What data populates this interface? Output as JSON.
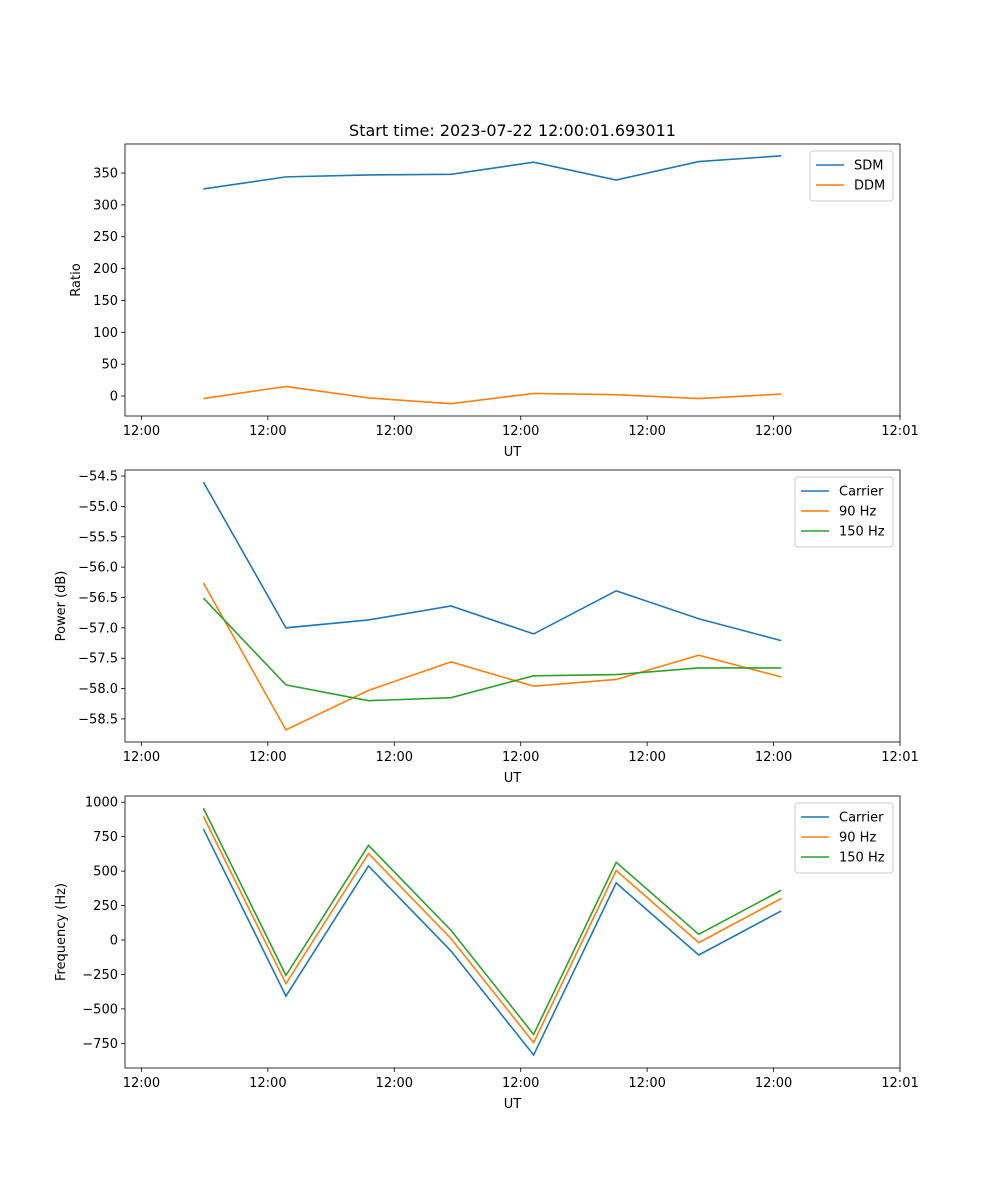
{
  "chart_data": [
    {
      "type": "line",
      "title": "Start time: 2023-07-22 12:00:01.693011",
      "xlabel": "UT",
      "ylabel": "Ratio",
      "x": [
        4.9,
        11.43,
        17.96,
        24.49,
        31.02,
        37.55,
        44.08,
        50.61
      ],
      "xticks": [
        0,
        10,
        20,
        30,
        40,
        50,
        60
      ],
      "xtick_labels": [
        "12:00",
        "12:00",
        "12:00",
        "12:00",
        "12:00",
        "12:00",
        "12:01"
      ],
      "xlim": [
        -1.3,
        60
      ],
      "ylim": [
        -31.4,
        395.6
      ],
      "yticks": [
        0,
        50,
        100,
        150,
        200,
        250,
        300,
        350
      ],
      "legend": "top-right",
      "series": [
        {
          "name": "SDM",
          "color": "#1f77b4",
          "values": [
            325,
            344,
            347,
            348,
            367,
            339,
            368,
            377
          ]
        },
        {
          "name": "DDM",
          "color": "#ff7f0e",
          "values": [
            -4,
            15,
            -3,
            -12,
            4,
            2,
            -4,
            3
          ]
        }
      ]
    },
    {
      "type": "line",
      "title": "",
      "xlabel": "UT",
      "ylabel": "Power (dB)",
      "x": [
        4.9,
        11.43,
        17.96,
        24.49,
        31.02,
        37.55,
        44.08,
        50.61
      ],
      "xticks": [
        0,
        10,
        20,
        30,
        40,
        50,
        60
      ],
      "xtick_labels": [
        "12:00",
        "12:00",
        "12:00",
        "12:00",
        "12:00",
        "12:00",
        "12:01"
      ],
      "xlim": [
        -1.3,
        60
      ],
      "ylim": [
        -58.88,
        -54.4
      ],
      "yticks": [
        -58.5,
        -58.0,
        -57.5,
        -57.0,
        -56.5,
        -56.0,
        -55.5,
        -55.0,
        -54.5
      ],
      "ytick_labels": [
        "−58.5",
        "−58.0",
        "−57.5",
        "−57.0",
        "−56.5",
        "−56.0",
        "−55.5",
        "−55.0",
        "−54.5"
      ],
      "legend": "top-right",
      "series": [
        {
          "name": "Carrier",
          "color": "#1f77b4",
          "values": [
            -54.6,
            -57.0,
            -56.87,
            -56.64,
            -57.1,
            -56.39,
            -56.85,
            -57.21
          ]
        },
        {
          "name": "90 Hz",
          "color": "#ff7f0e",
          "values": [
            -56.26,
            -58.68,
            -58.03,
            -57.56,
            -57.96,
            -57.85,
            -57.45,
            -57.81
          ]
        },
        {
          "name": "150 Hz",
          "color": "#2ca02c",
          "values": [
            -56.51,
            -57.94,
            -58.2,
            -58.15,
            -57.79,
            -57.77,
            -57.66,
            -57.66
          ]
        }
      ]
    },
    {
      "type": "line",
      "title": "",
      "xlabel": "UT",
      "ylabel": "Frequency (Hz)",
      "x": [
        4.9,
        11.43,
        17.96,
        24.49,
        31.02,
        37.55,
        44.08,
        50.61
      ],
      "xticks": [
        0,
        10,
        20,
        30,
        40,
        50,
        60
      ],
      "xtick_labels": [
        "12:00",
        "12:00",
        "12:00",
        "12:00",
        "12:00",
        "12:00",
        "12:01"
      ],
      "xlim": [
        -1.3,
        60
      ],
      "ylim": [
        -929,
        1045
      ],
      "yticks": [
        -750,
        -500,
        -250,
        0,
        250,
        500,
        750,
        1000
      ],
      "ytick_labels": [
        "−750",
        "−500",
        "−250",
        "0",
        "250",
        "500",
        "750",
        "1000"
      ],
      "legend": "top-right",
      "series": [
        {
          "name": "Carrier",
          "color": "#1f77b4",
          "values": [
            806,
            -407,
            537,
            -80,
            -835,
            414,
            -109,
            211
          ]
        },
        {
          "name": "90 Hz",
          "color": "#ff7f0e",
          "values": [
            897,
            -317,
            627,
            10,
            -745,
            504,
            -19,
            301
          ]
        },
        {
          "name": "150 Hz",
          "color": "#2ca02c",
          "values": [
            956,
            -257,
            687,
            70,
            -685,
            564,
            41,
            361
          ]
        }
      ]
    }
  ]
}
